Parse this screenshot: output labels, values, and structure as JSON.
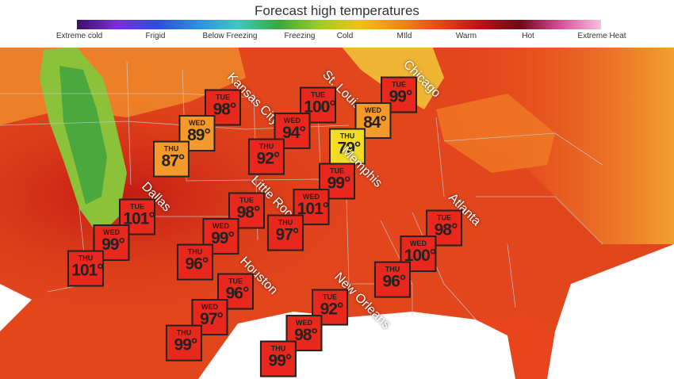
{
  "title": "Forecast high temperatures",
  "scale": {
    "labels": [
      "Extreme cold",
      "Frigid",
      "Below Freezing",
      "Freezing",
      "Cold",
      "MIld",
      "Warm",
      "Hot",
      "Extreme Heat"
    ],
    "colors": [
      "#3d0f6b",
      "#7b2fd6",
      "#2b4fd6",
      "#2f8fe0",
      "#3fc9c0",
      "#3aa83a",
      "#9ccc2a",
      "#f0c020",
      "#f08a1a",
      "#e24a1a",
      "#b81414",
      "#6b0a18",
      "#d8509a",
      "#f5c0dc"
    ]
  },
  "temp_colors": {
    "hot": "#e8281c",
    "warm_orange": "#f59a2a",
    "warm_yellow": "#f2dd24"
  },
  "cities": [
    {
      "name": "Kansas City",
      "forecast": [
        {
          "day": "TUE",
          "temp": "98°"
        },
        {
          "day": "WED",
          "temp": "89°"
        },
        {
          "day": "THU",
          "temp": "87°"
        }
      ]
    },
    {
      "name": "St. Louis",
      "forecast": [
        {
          "day": "TUE",
          "temp": "100°"
        },
        {
          "day": "WED",
          "temp": "94°"
        },
        {
          "day": "THU",
          "temp": "92°"
        }
      ]
    },
    {
      "name": "Chicago",
      "forecast": [
        {
          "day": "TUE",
          "temp": "99°"
        },
        {
          "day": "WED",
          "temp": "84°"
        },
        {
          "day": "THU",
          "temp": "79°"
        }
      ]
    },
    {
      "name": "Dallas",
      "forecast": [
        {
          "day": "TUE",
          "temp": "101°"
        },
        {
          "day": "WED",
          "temp": "99°"
        },
        {
          "day": "THU",
          "temp": "101°"
        }
      ]
    },
    {
      "name": "Little Rock",
      "forecast": [
        {
          "day": "TUE",
          "temp": "98°"
        },
        {
          "day": "WED",
          "temp": "99°"
        },
        {
          "day": "THU",
          "temp": "96°"
        }
      ]
    },
    {
      "name": "Memphis",
      "forecast": [
        {
          "day": "TUE",
          "temp": "99°"
        },
        {
          "day": "WED",
          "temp": "101°"
        },
        {
          "day": "THU",
          "temp": "97°"
        }
      ]
    },
    {
      "name": "Atlanta",
      "forecast": [
        {
          "day": "TUE",
          "temp": "98°"
        },
        {
          "day": "WED",
          "temp": "100°"
        },
        {
          "day": "THU",
          "temp": "96°"
        }
      ]
    },
    {
      "name": "Houston",
      "forecast": [
        {
          "day": "TUE",
          "temp": "96°"
        },
        {
          "day": "WED",
          "temp": "97°"
        },
        {
          "day": "THU",
          "temp": "99°"
        }
      ]
    },
    {
      "name": "New Orleans",
      "forecast": [
        {
          "day": "TUE",
          "temp": "92°"
        },
        {
          "day": "WED",
          "temp": "98°"
        },
        {
          "day": "THU",
          "temp": "99°"
        }
      ]
    }
  ]
}
